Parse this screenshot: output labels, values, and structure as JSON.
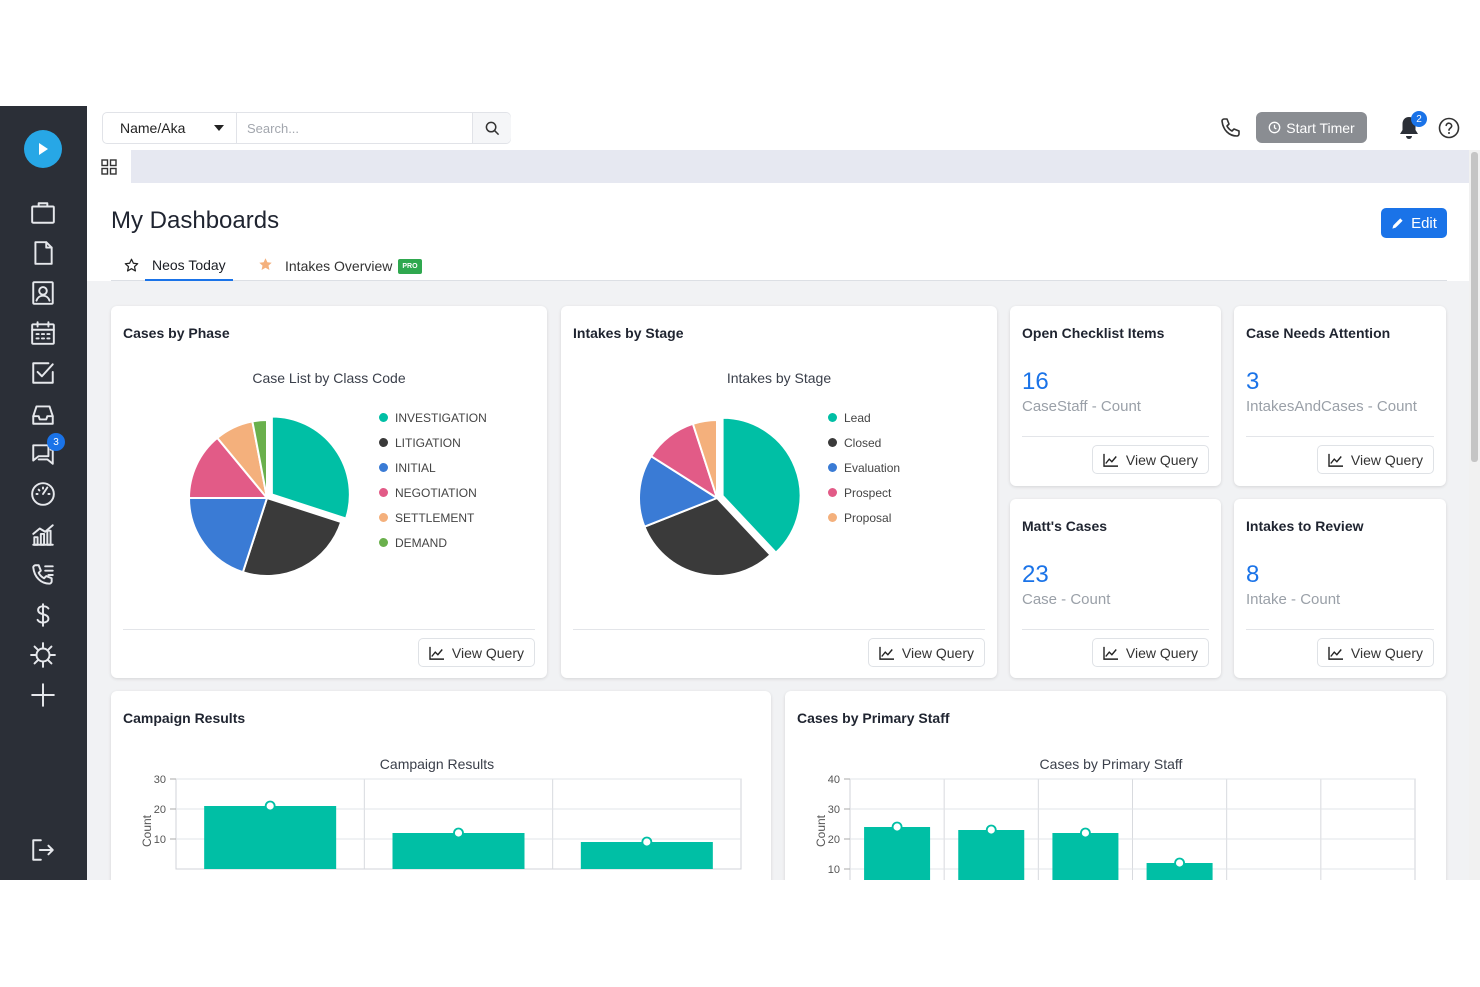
{
  "topbar": {
    "search_type": "Name/Aka",
    "search_placeholder": "Search...",
    "timer_label": "Start Timer",
    "notification_count": "2"
  },
  "sidebar": {
    "messages_badge": "3",
    "items": [
      "logo-icon",
      "briefcase-icon",
      "document-icon",
      "contact-icon",
      "calendar-icon",
      "checkbox-icon",
      "inbox-icon",
      "messages-icon",
      "dashboard-gauge-icon",
      "reports-chart-icon",
      "call-log-icon",
      "dollar-icon",
      "settings-gear-icon",
      "add-plus-icon",
      "logout-icon"
    ]
  },
  "header": {
    "title": "My Dashboards",
    "edit_label": "Edit",
    "tabs": [
      {
        "label": "Neos Today",
        "starred": false,
        "active": true
      },
      {
        "label": "Intakes Overview",
        "starred": true,
        "active": false,
        "badge": "PRO"
      }
    ]
  },
  "colors": {
    "accent": "#1a73e8",
    "teal": "#00bfa5",
    "dark": "#3a3a3a",
    "blue": "#3a7bd5",
    "pink": "#e25b87",
    "orange": "#f4b07c",
    "green": "#6ab04c"
  },
  "view_query_label": "View Query",
  "cards": {
    "cases_by_phase": {
      "title": "Cases by Phase",
      "chart_title": "Case List by Class Code"
    },
    "intakes_by_stage": {
      "title": "Intakes by Stage",
      "chart_title": "Intakes by Stage"
    },
    "open_checklist": {
      "title": "Open Checklist Items",
      "value": "16",
      "label": "CaseStaff - Count"
    },
    "case_needs_attention": {
      "title": "Case Needs Attention",
      "value": "3",
      "label": "IntakesAndCases - Count"
    },
    "matts_cases": {
      "title": "Matt's Cases",
      "value": "23",
      "label": "Case - Count"
    },
    "intakes_to_review": {
      "title": "Intakes to Review",
      "value": "8",
      "label": "Intake - Count"
    },
    "campaign_results": {
      "title": "Campaign Results",
      "chart_title": "Campaign Results"
    },
    "cases_by_staff": {
      "title": "Cases by Primary Staff",
      "chart_title": "Cases by Primary Staff"
    }
  },
  "chart_data": [
    {
      "type": "pie",
      "title": "Case List by Class Code",
      "categories": [
        "INVESTIGATION",
        "LITIGATION",
        "INITIAL",
        "NEGOTIATION",
        "SETTLEMENT",
        "DEMAND"
      ],
      "values": [
        30,
        25,
        20,
        14,
        8,
        3
      ],
      "colors": [
        "#00bfa5",
        "#3a3a3a",
        "#3a7bd5",
        "#e25b87",
        "#f4b07c",
        "#6ab04c"
      ],
      "legend": "right"
    },
    {
      "type": "pie",
      "title": "Intakes by Stage",
      "categories": [
        "Lead",
        "Closed",
        "Evaluation",
        "Prospect",
        "Proposal"
      ],
      "values": [
        38,
        31,
        15,
        11,
        5
      ],
      "colors": [
        "#00bfa5",
        "#3a3a3a",
        "#3a7bd5",
        "#e25b87",
        "#f4b07c"
      ],
      "legend": "right"
    },
    {
      "type": "bar",
      "title": "Campaign Results",
      "ylabel": "Count",
      "ylim": [
        0,
        30
      ],
      "yticks": [
        10,
        20,
        30
      ],
      "values": [
        21,
        12,
        9
      ],
      "grid": true
    },
    {
      "type": "bar",
      "title": "Cases by Primary Staff",
      "ylabel": "Count",
      "ylim": [
        0,
        40
      ],
      "yticks": [
        10,
        20,
        30,
        40
      ],
      "values": [
        24,
        23,
        22,
        12
      ],
      "grid": true
    }
  ]
}
